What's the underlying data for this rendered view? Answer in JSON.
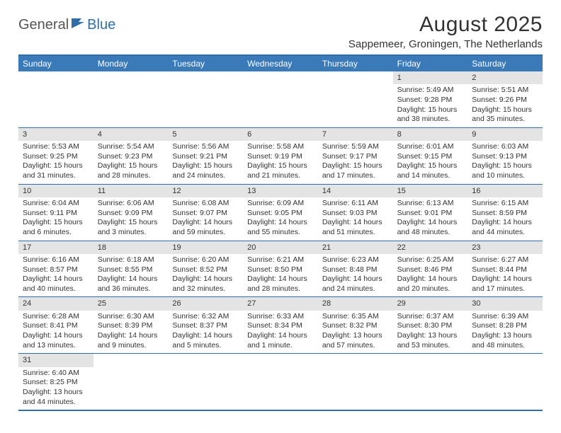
{
  "logo": {
    "part1": "General",
    "part2": "Blue"
  },
  "title": "August 2025",
  "location": "Sappemeer, Groningen, The Netherlands",
  "colors": {
    "header_bg": "#3a7ab8",
    "border": "#2f6ea8",
    "daynum_bg": "#e4e4e4",
    "text": "#333333"
  },
  "day_labels": [
    "Sunday",
    "Monday",
    "Tuesday",
    "Wednesday",
    "Thursday",
    "Friday",
    "Saturday"
  ],
  "weeks": [
    [
      {
        "day": "",
        "lines": []
      },
      {
        "day": "",
        "lines": []
      },
      {
        "day": "",
        "lines": []
      },
      {
        "day": "",
        "lines": []
      },
      {
        "day": "",
        "lines": []
      },
      {
        "day": "1",
        "lines": [
          "Sunrise: 5:49 AM",
          "Sunset: 9:28 PM",
          "Daylight: 15 hours and 38 minutes."
        ]
      },
      {
        "day": "2",
        "lines": [
          "Sunrise: 5:51 AM",
          "Sunset: 9:26 PM",
          "Daylight: 15 hours and 35 minutes."
        ]
      }
    ],
    [
      {
        "day": "3",
        "lines": [
          "Sunrise: 5:53 AM",
          "Sunset: 9:25 PM",
          "Daylight: 15 hours and 31 minutes."
        ]
      },
      {
        "day": "4",
        "lines": [
          "Sunrise: 5:54 AM",
          "Sunset: 9:23 PM",
          "Daylight: 15 hours and 28 minutes."
        ]
      },
      {
        "day": "5",
        "lines": [
          "Sunrise: 5:56 AM",
          "Sunset: 9:21 PM",
          "Daylight: 15 hours and 24 minutes."
        ]
      },
      {
        "day": "6",
        "lines": [
          "Sunrise: 5:58 AM",
          "Sunset: 9:19 PM",
          "Daylight: 15 hours and 21 minutes."
        ]
      },
      {
        "day": "7",
        "lines": [
          "Sunrise: 5:59 AM",
          "Sunset: 9:17 PM",
          "Daylight: 15 hours and 17 minutes."
        ]
      },
      {
        "day": "8",
        "lines": [
          "Sunrise: 6:01 AM",
          "Sunset: 9:15 PM",
          "Daylight: 15 hours and 14 minutes."
        ]
      },
      {
        "day": "9",
        "lines": [
          "Sunrise: 6:03 AM",
          "Sunset: 9:13 PM",
          "Daylight: 15 hours and 10 minutes."
        ]
      }
    ],
    [
      {
        "day": "10",
        "lines": [
          "Sunrise: 6:04 AM",
          "Sunset: 9:11 PM",
          "Daylight: 15 hours and 6 minutes."
        ]
      },
      {
        "day": "11",
        "lines": [
          "Sunrise: 6:06 AM",
          "Sunset: 9:09 PM",
          "Daylight: 15 hours and 3 minutes."
        ]
      },
      {
        "day": "12",
        "lines": [
          "Sunrise: 6:08 AM",
          "Sunset: 9:07 PM",
          "Daylight: 14 hours and 59 minutes."
        ]
      },
      {
        "day": "13",
        "lines": [
          "Sunrise: 6:09 AM",
          "Sunset: 9:05 PM",
          "Daylight: 14 hours and 55 minutes."
        ]
      },
      {
        "day": "14",
        "lines": [
          "Sunrise: 6:11 AM",
          "Sunset: 9:03 PM",
          "Daylight: 14 hours and 51 minutes."
        ]
      },
      {
        "day": "15",
        "lines": [
          "Sunrise: 6:13 AM",
          "Sunset: 9:01 PM",
          "Daylight: 14 hours and 48 minutes."
        ]
      },
      {
        "day": "16",
        "lines": [
          "Sunrise: 6:15 AM",
          "Sunset: 8:59 PM",
          "Daylight: 14 hours and 44 minutes."
        ]
      }
    ],
    [
      {
        "day": "17",
        "lines": [
          "Sunrise: 6:16 AM",
          "Sunset: 8:57 PM",
          "Daylight: 14 hours and 40 minutes."
        ]
      },
      {
        "day": "18",
        "lines": [
          "Sunrise: 6:18 AM",
          "Sunset: 8:55 PM",
          "Daylight: 14 hours and 36 minutes."
        ]
      },
      {
        "day": "19",
        "lines": [
          "Sunrise: 6:20 AM",
          "Sunset: 8:52 PM",
          "Daylight: 14 hours and 32 minutes."
        ]
      },
      {
        "day": "20",
        "lines": [
          "Sunrise: 6:21 AM",
          "Sunset: 8:50 PM",
          "Daylight: 14 hours and 28 minutes."
        ]
      },
      {
        "day": "21",
        "lines": [
          "Sunrise: 6:23 AM",
          "Sunset: 8:48 PM",
          "Daylight: 14 hours and 24 minutes."
        ]
      },
      {
        "day": "22",
        "lines": [
          "Sunrise: 6:25 AM",
          "Sunset: 8:46 PM",
          "Daylight: 14 hours and 20 minutes."
        ]
      },
      {
        "day": "23",
        "lines": [
          "Sunrise: 6:27 AM",
          "Sunset: 8:44 PM",
          "Daylight: 14 hours and 17 minutes."
        ]
      }
    ],
    [
      {
        "day": "24",
        "lines": [
          "Sunrise: 6:28 AM",
          "Sunset: 8:41 PM",
          "Daylight: 14 hours and 13 minutes."
        ]
      },
      {
        "day": "25",
        "lines": [
          "Sunrise: 6:30 AM",
          "Sunset: 8:39 PM",
          "Daylight: 14 hours and 9 minutes."
        ]
      },
      {
        "day": "26",
        "lines": [
          "Sunrise: 6:32 AM",
          "Sunset: 8:37 PM",
          "Daylight: 14 hours and 5 minutes."
        ]
      },
      {
        "day": "27",
        "lines": [
          "Sunrise: 6:33 AM",
          "Sunset: 8:34 PM",
          "Daylight: 14 hours and 1 minute."
        ]
      },
      {
        "day": "28",
        "lines": [
          "Sunrise: 6:35 AM",
          "Sunset: 8:32 PM",
          "Daylight: 13 hours and 57 minutes."
        ]
      },
      {
        "day": "29",
        "lines": [
          "Sunrise: 6:37 AM",
          "Sunset: 8:30 PM",
          "Daylight: 13 hours and 53 minutes."
        ]
      },
      {
        "day": "30",
        "lines": [
          "Sunrise: 6:39 AM",
          "Sunset: 8:28 PM",
          "Daylight: 13 hours and 48 minutes."
        ]
      }
    ],
    [
      {
        "day": "31",
        "lines": [
          "Sunrise: 6:40 AM",
          "Sunset: 8:25 PM",
          "Daylight: 13 hours and 44 minutes."
        ]
      },
      {
        "day": "",
        "lines": []
      },
      {
        "day": "",
        "lines": []
      },
      {
        "day": "",
        "lines": []
      },
      {
        "day": "",
        "lines": []
      },
      {
        "day": "",
        "lines": []
      },
      {
        "day": "",
        "lines": []
      }
    ]
  ]
}
